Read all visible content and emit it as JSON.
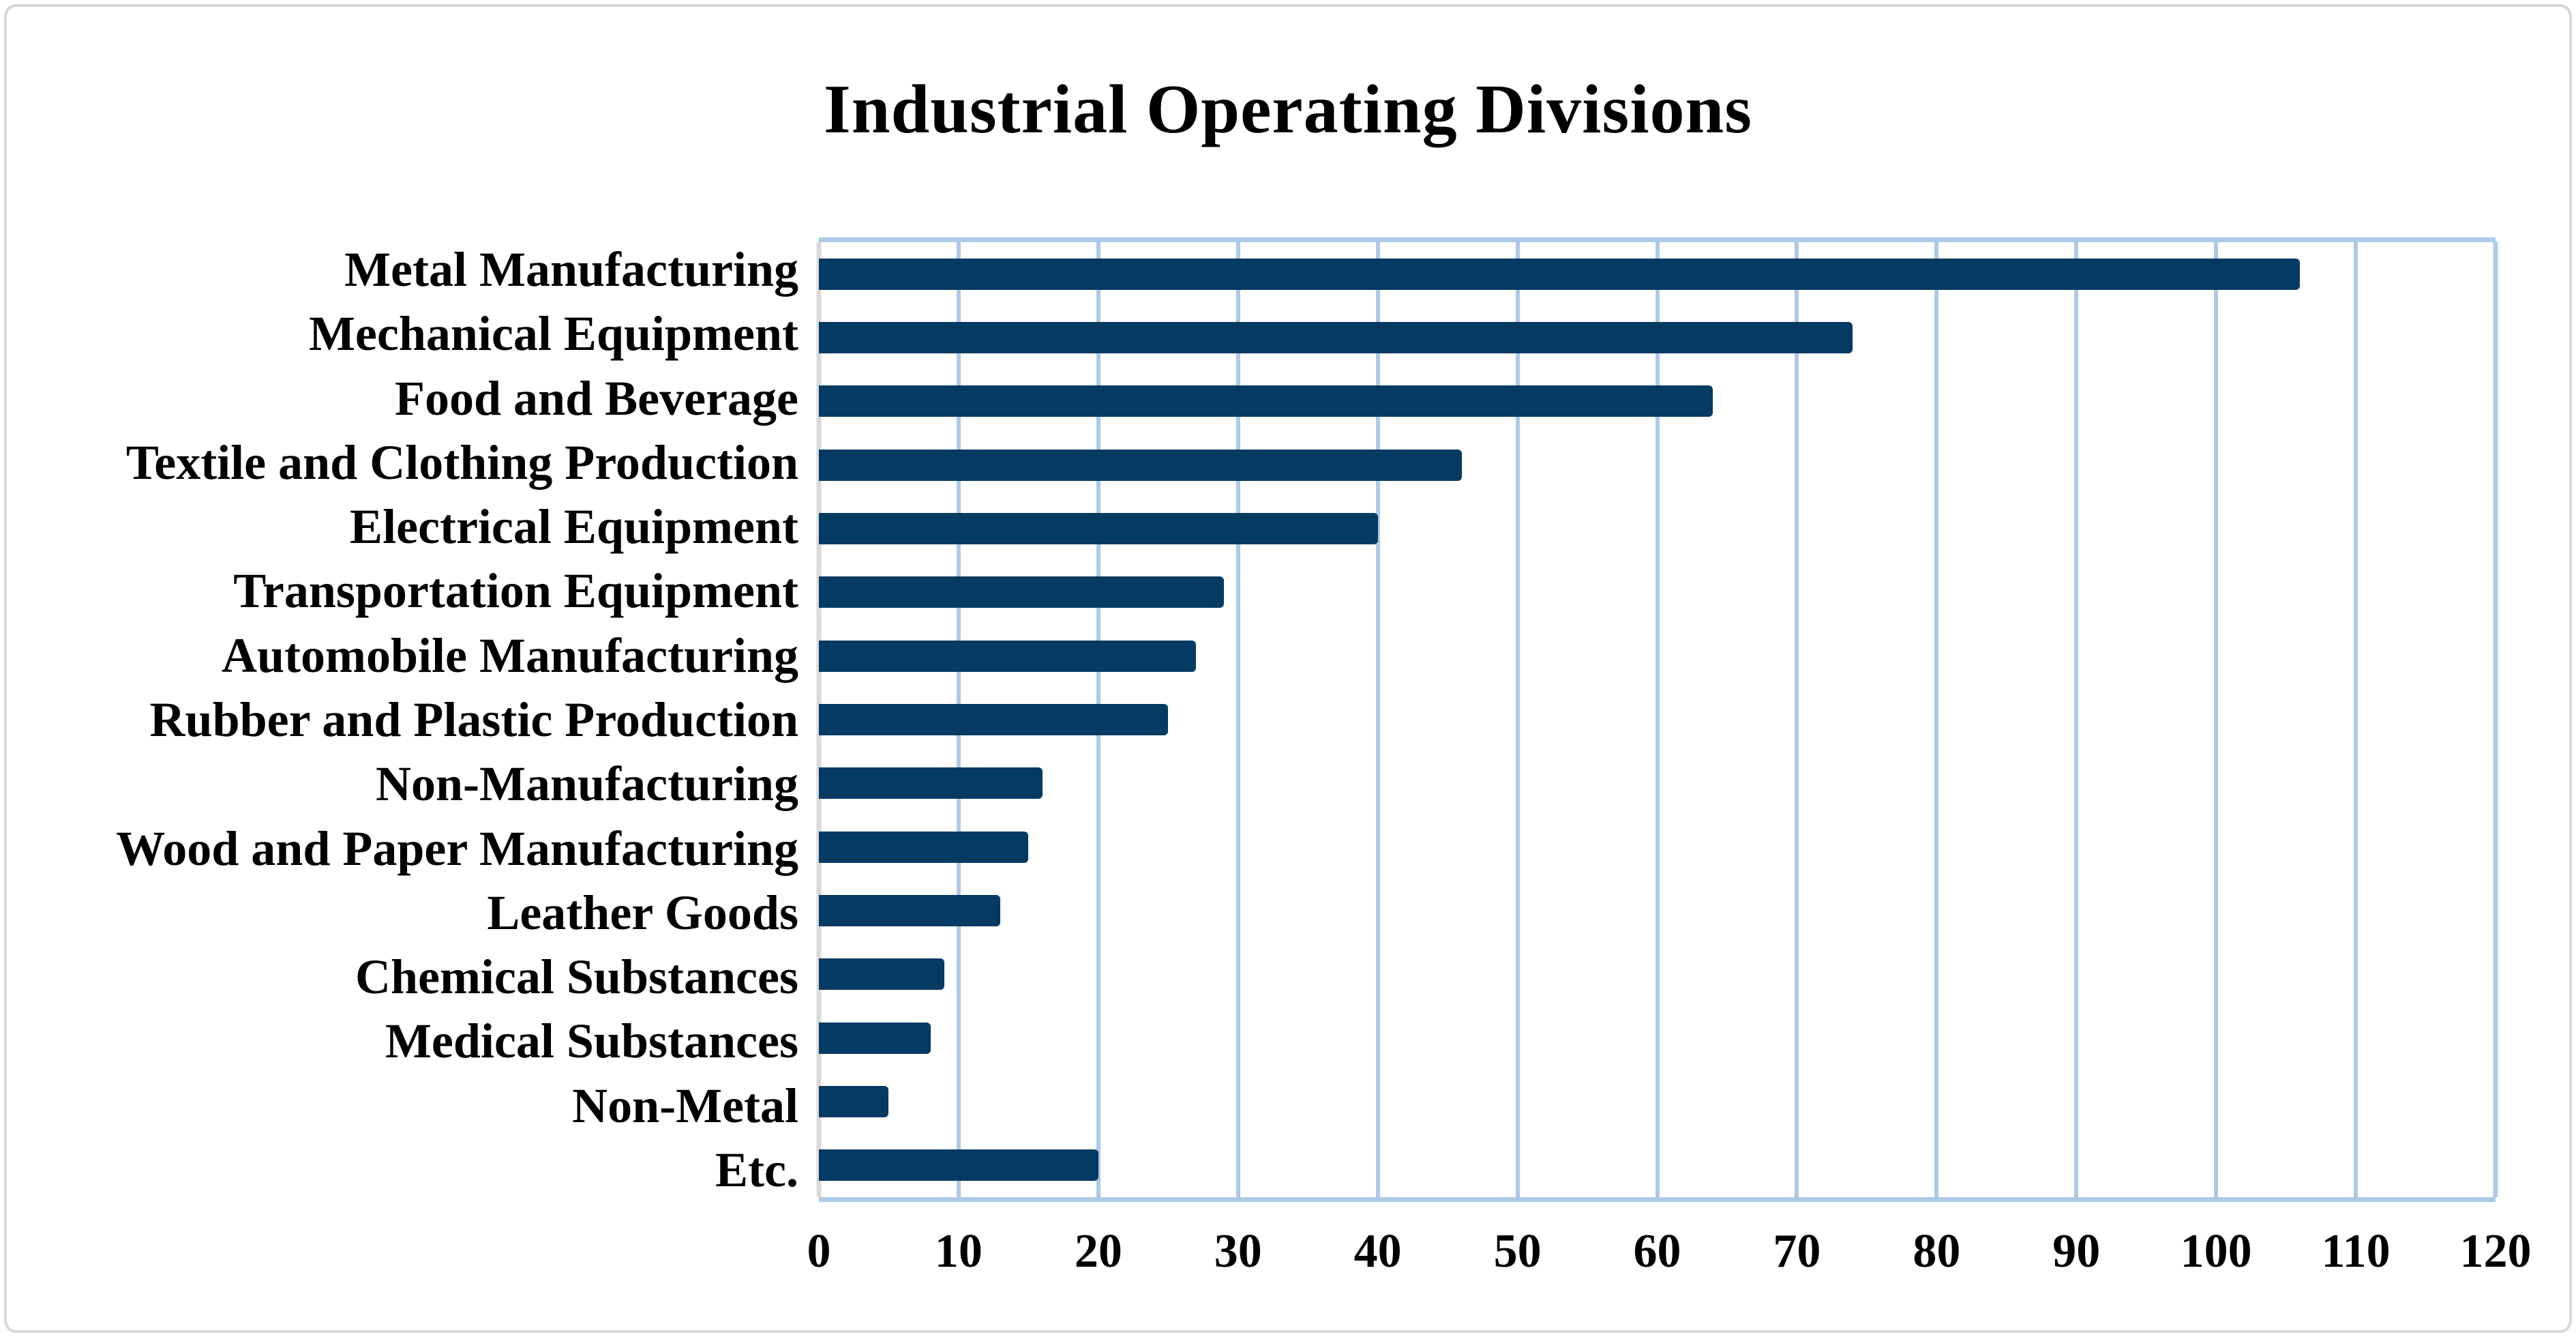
{
  "chart": {
    "title": "Industrial Operating Divisions"
  },
  "chart_data": {
    "type": "bar",
    "orientation": "horizontal",
    "title": "Industrial Operating Divisions",
    "categories": [
      "Metal Manufacturing",
      "Mechanical Equipment",
      "Food and Beverage",
      "Textile and Clothing Production",
      "Electrical Equipment",
      "Transportation Equipment",
      "Automobile Manufacturing",
      "Rubber and Plastic Production",
      "Non-Manufacturing",
      "Wood and Paper Manufacturing",
      "Leather Goods",
      "Chemical Substances",
      "Medical Substances",
      "Non-Metal",
      "Etc."
    ],
    "values": [
      106,
      74,
      64,
      46,
      40,
      29,
      27,
      25,
      16,
      15,
      13,
      9,
      8,
      5,
      20
    ],
    "xlabel": "",
    "ylabel": "",
    "xlim": [
      0,
      120
    ],
    "xticks": [
      0,
      10,
      20,
      30,
      40,
      50,
      60,
      70,
      80,
      90,
      100,
      110,
      120
    ],
    "grid": true,
    "legend": false,
    "colors": {
      "bar": "#053a63",
      "gridline": "#aec9e8",
      "plot_border": "#aec9e8",
      "axis_line": "#d9d9d9",
      "text": "#000000",
      "canvas_border": "#d7d7d7"
    }
  }
}
